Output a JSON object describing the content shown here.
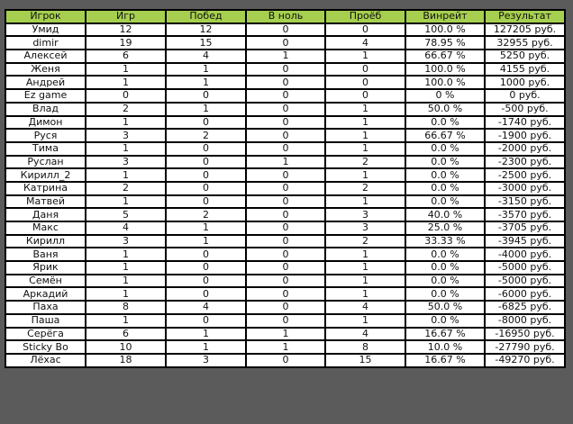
{
  "table": {
    "headers": [
      "Игрок",
      "Игр",
      "Побед",
      "В ноль",
      "Проёб",
      "Винрейт",
      "Результат"
    ],
    "rows": [
      [
        "Умид",
        "12",
        "12",
        "0",
        "0",
        "100.0 %",
        "127205 руб."
      ],
      [
        "dimir",
        "19",
        "15",
        "0",
        "4",
        "78.95 %",
        "32955 руб."
      ],
      [
        "Алексей",
        "6",
        "4",
        "1",
        "1",
        "66.67 %",
        "5250 руб."
      ],
      [
        "Женя",
        "1",
        "1",
        "0",
        "0",
        "100.0 %",
        "4155 руб."
      ],
      [
        "Андрей",
        "1",
        "1",
        "0",
        "0",
        "100.0 %",
        "1000 руб."
      ],
      [
        "Ez game",
        "0",
        "0",
        "0",
        "0",
        "0 %",
        "0 руб."
      ],
      [
        "Влад",
        "2",
        "1",
        "0",
        "1",
        "50.0 %",
        "-500 руб."
      ],
      [
        "Димон",
        "1",
        "0",
        "0",
        "1",
        "0.0 %",
        "-1740 руб."
      ],
      [
        "Руся",
        "3",
        "2",
        "0",
        "1",
        "66.67 %",
        "-1900 руб."
      ],
      [
        "Тима",
        "1",
        "0",
        "0",
        "1",
        "0.0 %",
        "-2000 руб."
      ],
      [
        "Руслан",
        "3",
        "0",
        "1",
        "2",
        "0.0 %",
        "-2300 руб."
      ],
      [
        "Кирилл_2",
        "1",
        "0",
        "0",
        "1",
        "0.0 %",
        "-2500 руб."
      ],
      [
        "Катрина",
        "2",
        "0",
        "0",
        "2",
        "0.0 %",
        "-3000 руб."
      ],
      [
        "Матвей",
        "1",
        "0",
        "0",
        "1",
        "0.0 %",
        "-3150 руб."
      ],
      [
        "Даня",
        "5",
        "2",
        "0",
        "3",
        "40.0 %",
        "-3570 руб."
      ],
      [
        "Макс",
        "4",
        "1",
        "0",
        "3",
        "25.0 %",
        "-3705 руб."
      ],
      [
        "Кирилл",
        "3",
        "1",
        "0",
        "2",
        "33.33 %",
        "-3945 руб."
      ],
      [
        "Ваня",
        "1",
        "0",
        "0",
        "1",
        "0.0 %",
        "-4000 руб."
      ],
      [
        "Ярик",
        "1",
        "0",
        "0",
        "1",
        "0.0 %",
        "-5000 руб."
      ],
      [
        "Семён",
        "1",
        "0",
        "0",
        "1",
        "0.0 %",
        "-5000 руб."
      ],
      [
        "Аркадий",
        "1",
        "0",
        "0",
        "1",
        "0.0 %",
        "-6000 руб."
      ],
      [
        "Паха",
        "8",
        "4",
        "0",
        "4",
        "50.0 %",
        "-6825 руб."
      ],
      [
        "Паша",
        "1",
        "0",
        "0",
        "1",
        "0.0 %",
        "-8000 руб."
      ],
      [
        "Серёга",
        "6",
        "1",
        "1",
        "4",
        "16.67 %",
        "-16950 руб."
      ],
      [
        "Sticky Bo",
        "10",
        "1",
        "1",
        "8",
        "10.0 %",
        "-27790 руб."
      ],
      [
        "Лёхас",
        "18",
        "3",
        "0",
        "15",
        "16.67 %",
        "-49270 руб."
      ]
    ]
  }
}
